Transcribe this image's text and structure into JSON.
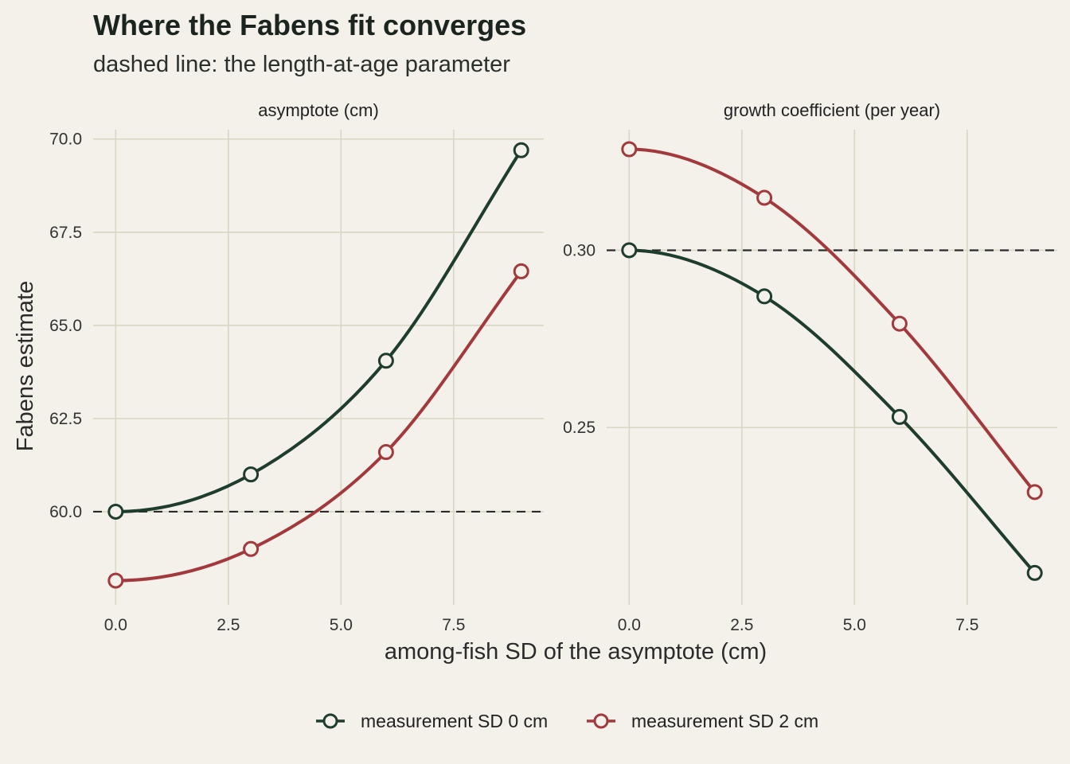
{
  "title": "Where the Fabens fit converges",
  "subtitle": "dashed line: the length-at-age parameter",
  "xlabel": "among-fish SD of the asymptote (cm)",
  "ylabel": "Fabens estimate",
  "colors": {
    "background": "#f3f1ea",
    "grid": "#d8d6c4",
    "series0": "#1e3d2c",
    "series1": "#a2393c",
    "reference": "#2a2a2a"
  },
  "legend": {
    "position": "bottom",
    "items": [
      {
        "label": "measurement SD 0 cm",
        "color": "#1e3d2c"
      },
      {
        "label": "measurement SD 2 cm",
        "color": "#a2393c"
      }
    ]
  },
  "chart_data": [
    {
      "type": "line",
      "panel_title": "asymptote (cm)",
      "x": [
        0,
        3,
        6,
        9
      ],
      "xlim": [
        -0.5,
        9.5
      ],
      "x_ticks": [
        "0.0",
        "2.5",
        "5.0",
        "7.5"
      ],
      "ylim": [
        57.5,
        70.25
      ],
      "y_ticks": [
        "60.0",
        "62.5",
        "65.0",
        "67.5",
        "70.0"
      ],
      "reference_line": 60.0,
      "grid": true,
      "series": [
        {
          "name": "measurement SD 0 cm",
          "values": [
            60.0,
            61.0,
            64.05,
            69.7
          ]
        },
        {
          "name": "measurement SD 2 cm",
          "values": [
            58.15,
            59.0,
            61.6,
            66.45
          ]
        }
      ]
    },
    {
      "type": "line",
      "panel_title": "growth coefficient (per year)",
      "x": [
        0,
        3,
        6,
        9
      ],
      "xlim": [
        -0.5,
        9.5
      ],
      "x_ticks": [
        "0.0",
        "2.5",
        "5.0",
        "7.5"
      ],
      "ylim": [
        0.2,
        0.334
      ],
      "y_ticks": [
        "0.25",
        "0.30"
      ],
      "reference_line": 0.3,
      "grid": true,
      "series": [
        {
          "name": "measurement SD 0 cm",
          "values": [
            0.3,
            0.287,
            0.253,
            0.209
          ]
        },
        {
          "name": "measurement SD 2 cm",
          "values": [
            0.3285,
            0.3148,
            0.2793,
            0.2318
          ]
        }
      ]
    }
  ]
}
